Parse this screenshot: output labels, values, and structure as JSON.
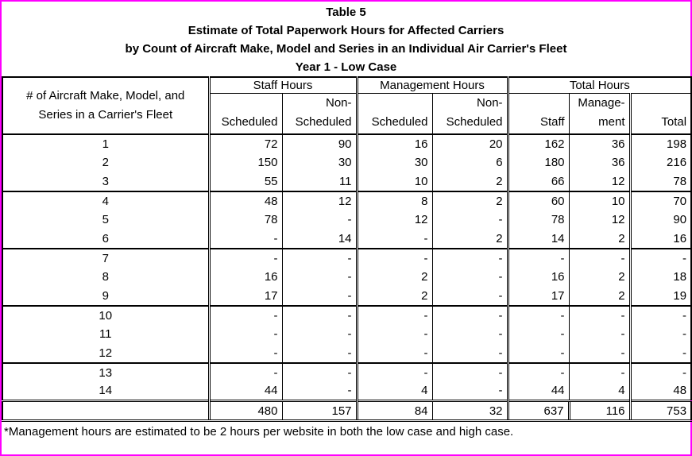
{
  "title": {
    "line1": "Table 5",
    "line2": "Estimate of Total Paperwork Hours for Affected Carriers",
    "line3": "by Count of Aircraft Make, Model and Series in an Individual Air Carrier's Fleet",
    "line4": "Year 1 - Low Case"
  },
  "table": {
    "row_header": "# of Aircraft Make, Model, and\nSeries in a Carrier's Fleet",
    "groups": [
      {
        "label": "Staff Hours",
        "columns": [
          "Scheduled",
          "Non-\nScheduled"
        ]
      },
      {
        "label": "Management Hours",
        "columns": [
          "Scheduled",
          "Non-\nScheduled"
        ]
      },
      {
        "label": "Total Hours",
        "columns": [
          "Staff",
          "Manage-\nment",
          "Total"
        ]
      }
    ],
    "rows": [
      {
        "fleet": "1",
        "values": [
          "72",
          "90",
          "16",
          "20",
          "162",
          "36",
          "198"
        ]
      },
      {
        "fleet": "2",
        "values": [
          "150",
          "30",
          "30",
          "6",
          "180",
          "36",
          "216"
        ]
      },
      {
        "fleet": "3",
        "values": [
          "55",
          "11",
          "10",
          "2",
          "66",
          "12",
          "78"
        ]
      },
      {
        "fleet": "4",
        "values": [
          "48",
          "12",
          "8",
          "2",
          "60",
          "10",
          "70"
        ]
      },
      {
        "fleet": "5",
        "values": [
          "78",
          "-",
          "12",
          "-",
          "78",
          "12",
          "90"
        ]
      },
      {
        "fleet": "6",
        "values": [
          "-",
          "14",
          "-",
          "2",
          "14",
          "2",
          "16"
        ]
      },
      {
        "fleet": "7",
        "values": [
          "-",
          "-",
          "-",
          "-",
          "-",
          "-",
          "-"
        ]
      },
      {
        "fleet": "8",
        "values": [
          "16",
          "-",
          "2",
          "-",
          "16",
          "2",
          "18"
        ]
      },
      {
        "fleet": "9",
        "values": [
          "17",
          "-",
          "2",
          "-",
          "17",
          "2",
          "19"
        ]
      },
      {
        "fleet": "10",
        "values": [
          "-",
          "-",
          "-",
          "-",
          "-",
          "-",
          "-"
        ]
      },
      {
        "fleet": "11",
        "values": [
          "-",
          "-",
          "-",
          "-",
          "-",
          "-",
          "-"
        ]
      },
      {
        "fleet": "12",
        "values": [
          "-",
          "-",
          "-",
          "-",
          "-",
          "-",
          "-"
        ]
      },
      {
        "fleet": "13",
        "values": [
          "-",
          "-",
          "-",
          "-",
          "-",
          "-",
          "-"
        ]
      },
      {
        "fleet": "14",
        "values": [
          "44",
          "-",
          "4",
          "-",
          "44",
          "4",
          "48"
        ]
      }
    ],
    "totals": [
      "480",
      "157",
      "84",
      "32",
      "637",
      "116",
      "753"
    ]
  },
  "footnote": "*Management hours are estimated to be 2 hours per website in both the low case and high case.",
  "colors": {
    "page_border": "#ff00ff",
    "table_border": "#000000",
    "background": "#ffffff",
    "text": "#000000"
  }
}
